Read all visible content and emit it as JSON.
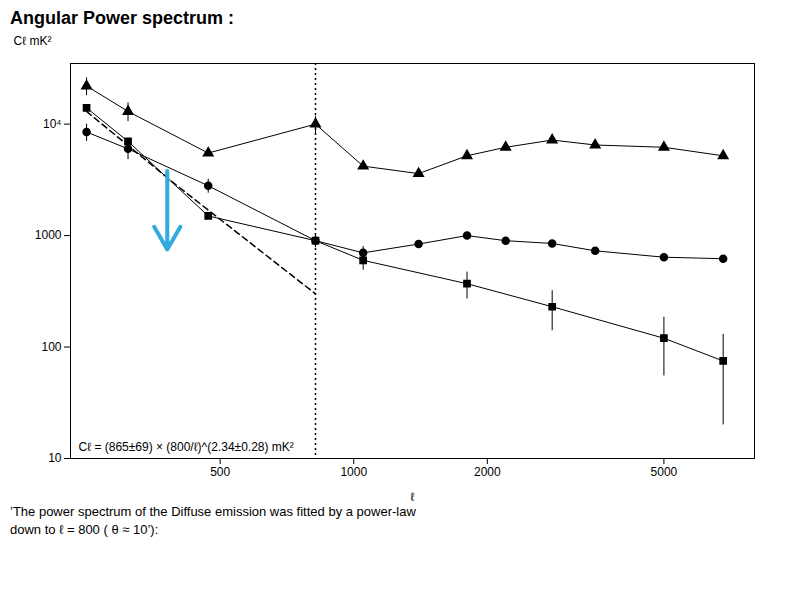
{
  "chart_data": {
    "type": "line",
    "title": "Angular Power spectrum :",
    "xlabel": "ℓ",
    "ylabel": "Cℓ mK²",
    "log": true,
    "grid": false,
    "xlim": [
      230,
      8000
    ],
    "ylim": [
      10,
      35000
    ],
    "xticks": [
      500,
      1000,
      2000,
      5000
    ],
    "yticks": [
      10,
      100,
      1000,
      {
        "value": 10000,
        "label": "10⁴"
      }
    ],
    "series": [
      {
        "color": "#000000",
        "marker": "triangle",
        "line_style": "solid",
        "x": [
          250,
          310,
          470,
          820,
          1050,
          1400,
          1800,
          2200,
          2800,
          3500,
          5000,
          6800
        ],
        "values": [
          22000,
          13000,
          5500,
          10000,
          4200,
          3600,
          5200,
          6200,
          7200,
          6500,
          6200,
          5200
        ],
        "errors": [
          4000,
          2500,
          null,
          1800,
          null,
          null,
          null,
          null,
          null,
          null,
          null,
          null
        ]
      },
      {
        "color": "#000000",
        "marker": "circle",
        "line_style": "solid",
        "x": [
          250,
          310,
          470,
          820,
          1050,
          1400,
          1800,
          2200,
          2800,
          3500,
          5000,
          6800
        ],
        "values": [
          8500,
          6000,
          2800,
          900,
          700,
          840,
          1000,
          900,
          850,
          730,
          640,
          620
        ],
        "errors": [
          1500,
          1200,
          400,
          120,
          100,
          null,
          null,
          null,
          null,
          null,
          null,
          null
        ]
      },
      {
        "color": "#000000",
        "marker": "square",
        "line_style": "solid",
        "x": [
          250,
          310,
          470,
          820,
          1050,
          1800,
          2800,
          5000,
          6800
        ],
        "values": [
          14000,
          7000,
          1500,
          900,
          600,
          370,
          230,
          120,
          75
        ],
        "errors": [
          null,
          null,
          null,
          120,
          110,
          100,
          90,
          65,
          55
        ]
      },
      {
        "color": "#000000",
        "marker": "none",
        "line_style": "dashed",
        "x": [
          250,
          400,
          820
        ],
        "values": [
          13000,
          2800,
          300
        ]
      }
    ],
    "vline": {
      "x": 820,
      "line_style": "dotted",
      "color": "#000000"
    },
    "arrow": {
      "x": 380,
      "y_start": 3800,
      "y_end": 750,
      "color": "#33aadd"
    },
    "annotation": "Cℓ = (865±69) × (800/ℓ)^(2.34±0.28) mK²",
    "caption": [
      "’The power spectrum of the Diffuse emission was fitted by a power-law",
      "down to ℓ = 800 ( θ ≈ 10’):"
    ]
  }
}
